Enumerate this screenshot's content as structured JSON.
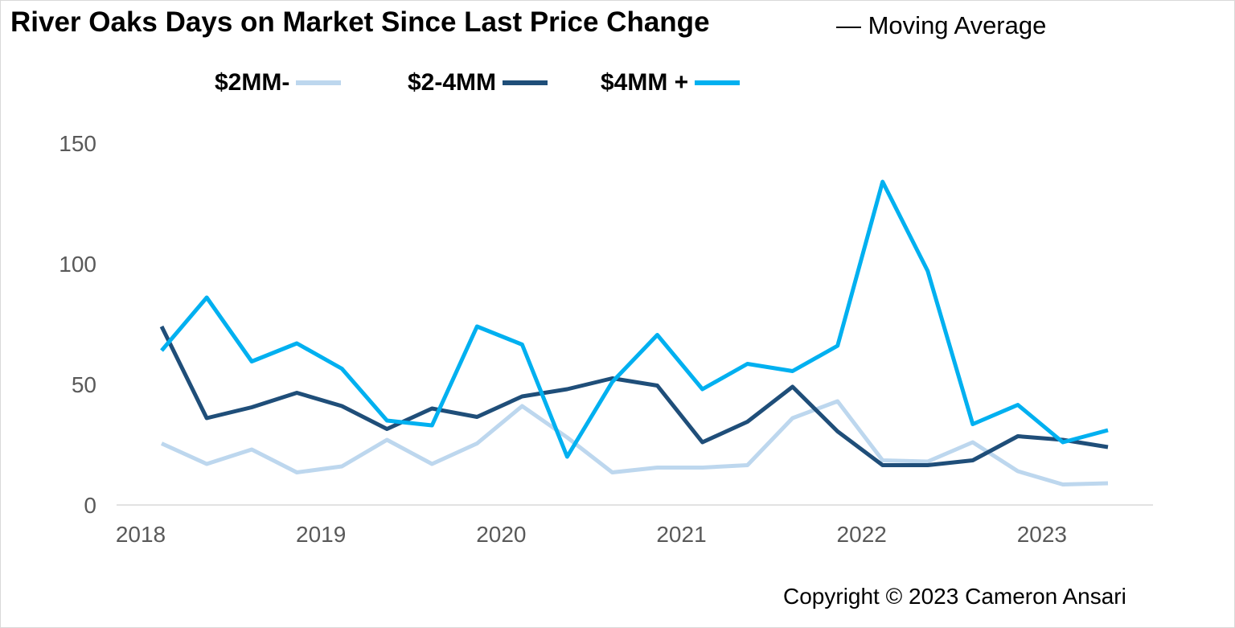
{
  "header": {
    "title": "River Oaks Days on Market Since Last Price Change",
    "subtitle": "— Moving Average"
  },
  "footer": {
    "copyright": "Copyright © 2023 Cameron Ansari"
  },
  "chart_data": {
    "type": "line",
    "title": "River Oaks Days on Market Since Last Price Change",
    "subtitle": "— Moving Average",
    "xlabel": "",
    "ylabel": "",
    "ylim": [
      0,
      150
    ],
    "yticks": [
      0,
      50,
      100,
      150
    ],
    "xlim": [
      2018,
      2023.75
    ],
    "xticks": [
      "2018",
      "2019",
      "2020",
      "2021",
      "2022",
      "2023"
    ],
    "grid": false,
    "legend_position": "top",
    "x": [
      2018.25,
      2018.5,
      2018.75,
      2019.0,
      2019.25,
      2019.5,
      2019.75,
      2020.0,
      2020.25,
      2020.5,
      2020.75,
      2021.0,
      2021.25,
      2021.5,
      2021.75,
      2022.0,
      2022.25,
      2022.5,
      2022.75,
      2023.0,
      2023.25,
      2023.5
    ],
    "series": [
      {
        "name": "$2MM-",
        "color": "#bdd7ee",
        "values": [
          25.5,
          17,
          23,
          13.5,
          16,
          27,
          17,
          25.5,
          41,
          28,
          13.5,
          15.5,
          15.5,
          16.5,
          36,
          43,
          18.5,
          18,
          26,
          14,
          8.5,
          9
        ]
      },
      {
        "name": "$2-4MM",
        "color": "#1f4e79",
        "values": [
          74,
          36,
          40.5,
          46.5,
          41,
          31.5,
          40,
          36.5,
          45,
          48,
          52.5,
          49.5,
          26,
          34.5,
          49,
          30.5,
          16.5,
          16.5,
          18.5,
          28.5,
          27,
          24
        ]
      },
      {
        "name": "$4MM +",
        "color": "#00b0f0",
        "values": [
          64,
          86,
          59.5,
          67,
          56.5,
          35,
          33,
          74,
          66.5,
          20,
          51,
          70.5,
          48,
          58.5,
          55.5,
          66,
          134,
          97,
          33.5,
          41.5,
          26,
          31
        ]
      }
    ]
  }
}
